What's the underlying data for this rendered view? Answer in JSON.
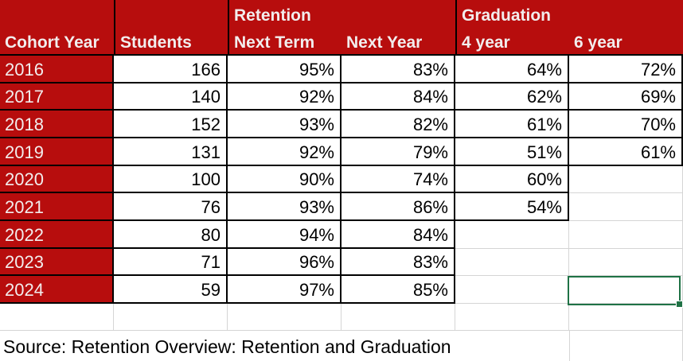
{
  "table": {
    "group_headers": {
      "retention": "Retention",
      "graduation": "Graduation"
    },
    "columns": [
      "Cohort Year",
      "Students",
      "Next Term",
      "Next Year",
      "4 year",
      "6 year"
    ],
    "rows": [
      {
        "year": "2016",
        "students": "166",
        "next_term": "95%",
        "next_year": "83%",
        "four_year": "64%",
        "six_year": "72%"
      },
      {
        "year": "2017",
        "students": "140",
        "next_term": "92%",
        "next_year": "84%",
        "four_year": "62%",
        "six_year": "69%"
      },
      {
        "year": "2018",
        "students": "152",
        "next_term": "93%",
        "next_year": "82%",
        "four_year": "61%",
        "six_year": "70%"
      },
      {
        "year": "2019",
        "students": "131",
        "next_term": "92%",
        "next_year": "79%",
        "four_year": "51%",
        "six_year": "61%"
      },
      {
        "year": "2020",
        "students": "100",
        "next_term": "90%",
        "next_year": "74%",
        "four_year": "60%",
        "six_year": ""
      },
      {
        "year": "2021",
        "students": "76",
        "next_term": "93%",
        "next_year": "86%",
        "four_year": "54%",
        "six_year": ""
      },
      {
        "year": "2022",
        "students": "80",
        "next_term": "94%",
        "next_year": "84%",
        "four_year": "",
        "six_year": ""
      },
      {
        "year": "2023",
        "students": "71",
        "next_term": "96%",
        "next_year": "83%",
        "four_year": "",
        "six_year": ""
      },
      {
        "year": "2024",
        "students": "59",
        "next_term": "97%",
        "next_year": "85%",
        "four_year": "",
        "six_year": ""
      }
    ],
    "source_note": "Source: Retention Overview: Retention and Graduation"
  },
  "colors": {
    "header_red": "#B70D0D",
    "header_text": "#F2EDED",
    "cell_border_black": "#000000",
    "gridline_gray": "#D5D5D5",
    "selection_green": "#1F7245"
  }
}
